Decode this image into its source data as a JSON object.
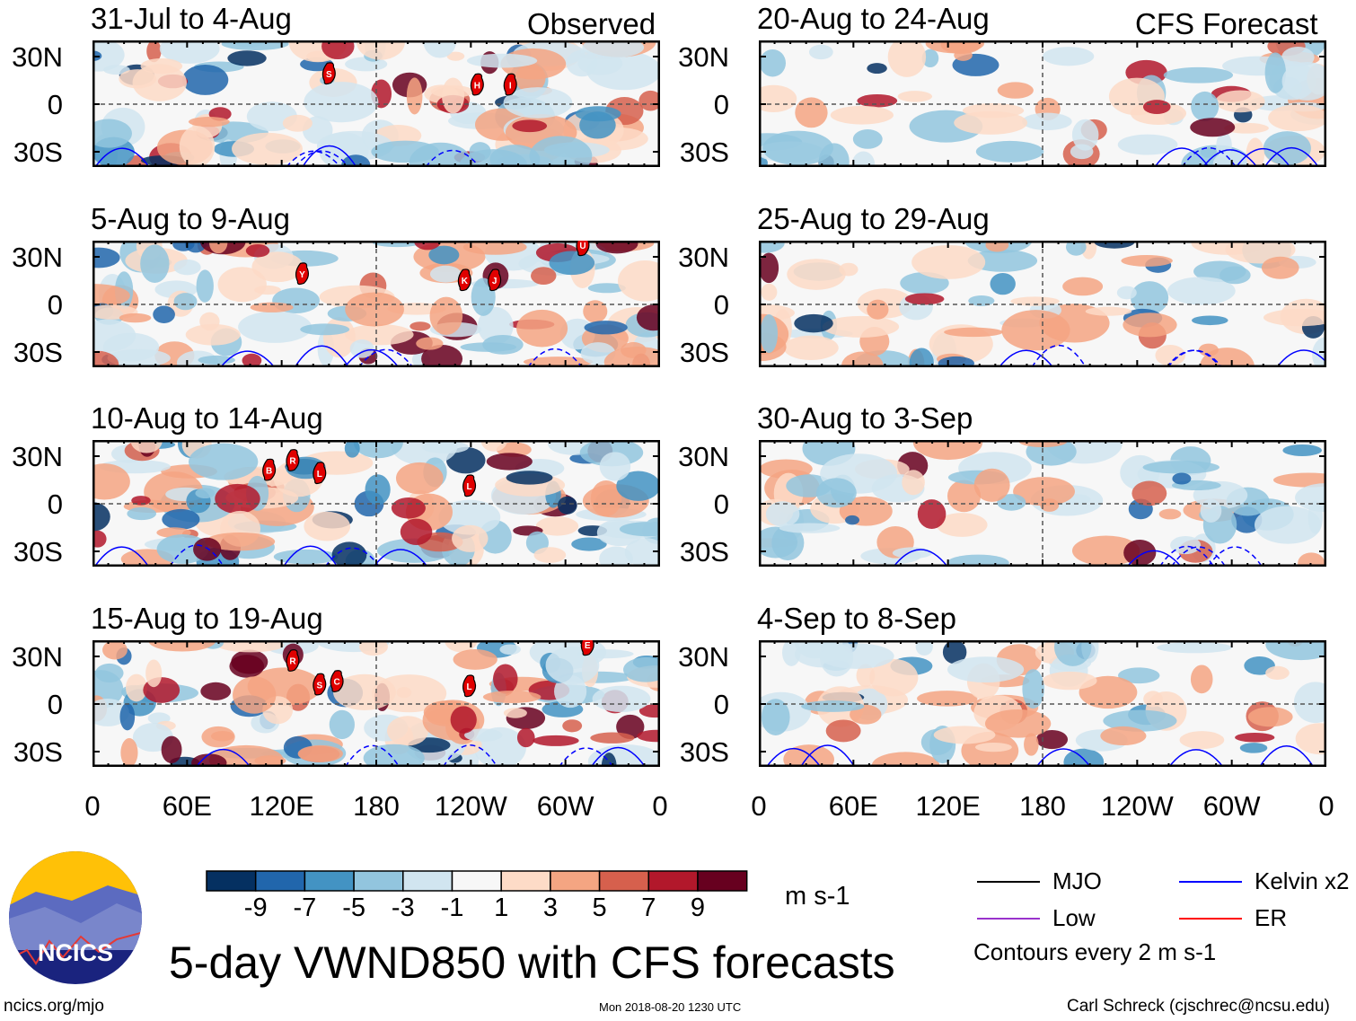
{
  "title": "5-day VWND850 with CFS forecasts",
  "column_labels": {
    "observed": "Observed",
    "forecast": "CFS Forecast"
  },
  "lat_labels": [
    "30N",
    "0",
    "30S"
  ],
  "lon_labels": [
    "0",
    "60E",
    "120E",
    "180",
    "120W",
    "60W",
    "0"
  ],
  "panels": [
    {
      "title": "31-Jul to 4-Aug",
      "type": "observed",
      "storms": [
        {
          "id": "S",
          "lon": 150,
          "lat": 19
        },
        {
          "id": "H",
          "lon": 244,
          "lat": 12
        },
        {
          "id": "I",
          "lon": 265,
          "lat": 12
        }
      ]
    },
    {
      "title": "5-Aug to 9-Aug",
      "type": "observed",
      "storms": [
        {
          "id": "Y",
          "lon": 133,
          "lat": 19
        },
        {
          "id": "K",
          "lon": 236,
          "lat": 15
        },
        {
          "id": "J",
          "lon": 255,
          "lat": 15
        },
        {
          "id": "U",
          "lon": 311,
          "lat": 37
        }
      ]
    },
    {
      "title": "10-Aug to 14-Aug",
      "type": "observed",
      "storms": [
        {
          "id": "B",
          "lon": 112,
          "lat": 21
        },
        {
          "id": "R",
          "lon": 127,
          "lat": 27
        },
        {
          "id": "L",
          "lon": 144,
          "lat": 19
        },
        {
          "id": "L",
          "lon": 239,
          "lat": 11
        }
      ]
    },
    {
      "title": "15-Aug to 19-Aug",
      "type": "observed",
      "storms": [
        {
          "id": "R",
          "lon": 127,
          "lat": 27
        },
        {
          "id": "S",
          "lon": 144,
          "lat": 12
        },
        {
          "id": "C",
          "lon": 155,
          "lat": 14
        },
        {
          "id": "L",
          "lon": 239,
          "lat": 11
        },
        {
          "id": "E",
          "lon": 314,
          "lat": 37
        }
      ]
    },
    {
      "title": "20-Aug to 24-Aug",
      "type": "forecast",
      "storms": []
    },
    {
      "title": "25-Aug to 29-Aug",
      "type": "forecast",
      "storms": []
    },
    {
      "title": "30-Aug to 3-Sep",
      "type": "forecast",
      "storms": []
    },
    {
      "title": "4-Sep to 8-Sep",
      "type": "forecast",
      "storms": []
    }
  ],
  "colorbar": {
    "units": "m s-1",
    "labels": [
      "-9",
      "-7",
      "-5",
      "-3",
      "-1",
      "1",
      "3",
      "5",
      "7",
      "9"
    ],
    "colors": [
      "#053061",
      "#2166ac",
      "#4393c3",
      "#92c5de",
      "#d1e5f0",
      "#f7f7f7",
      "#fddbc7",
      "#f4a582",
      "#d6604d",
      "#b2182b",
      "#67001f"
    ]
  },
  "legend": {
    "items": [
      {
        "label": "MJO",
        "color": "#000000"
      },
      {
        "label": "Kelvin x2",
        "color": "#0000ff"
      },
      {
        "label": "Low",
        "color": "#9932cc"
      },
      {
        "label": "ER",
        "color": "#ff0000"
      }
    ],
    "contours_note": "Contours every 2 m s-1"
  },
  "logo": {
    "text": "NCICS"
  },
  "footer": {
    "url": "ncics.org/mjo",
    "timestamp": "Mon 2018-08-20 1230 UTC",
    "author": "Carl Schreck (cjschrec@ncsu.edu)"
  }
}
